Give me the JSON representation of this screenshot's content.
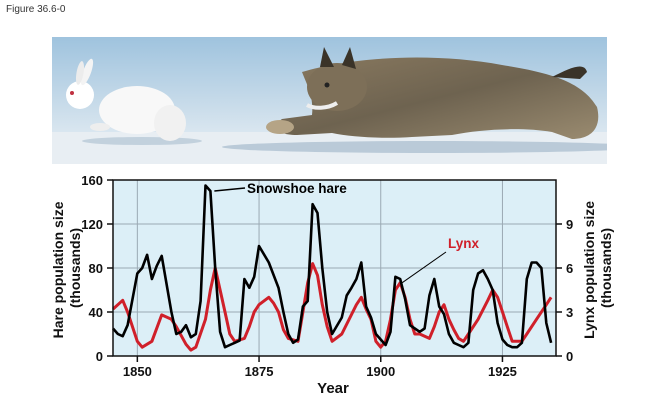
{
  "figure_label": "Figure 36.6-0",
  "photo": {
    "subjects": [
      "snowshoe-hare",
      "lynx"
    ]
  },
  "chart_data": {
    "type": "line",
    "xlabel": "Year",
    "ylabel_left": "Hare population size (thousands)",
    "ylabel_right": "Lynx population size (thousands)",
    "xlim": [
      1845,
      1936
    ],
    "ylim_left": [
      0,
      160
    ],
    "ylim_right": [
      0,
      12
    ],
    "x_ticks": [
      1850,
      1875,
      1900,
      1925
    ],
    "y_ticks_left": [
      0,
      40,
      80,
      120,
      160
    ],
    "y_ticks_right": [
      0,
      3,
      6,
      9
    ],
    "grid": true,
    "background": "#dceff7",
    "series": [
      {
        "name": "Snowshoe hare",
        "axis": "left",
        "color": "#000000",
        "annotation": "Snowshoe hare",
        "x": [
          1845,
          1846,
          1847,
          1848,
          1850,
          1851,
          1852,
          1853,
          1854,
          1855,
          1857,
          1858,
          1859,
          1860,
          1861,
          1862,
          1863,
          1864,
          1865,
          1866,
          1867,
          1868,
          1869,
          1870,
          1871,
          1872,
          1873,
          1874,
          1875,
          1877,
          1879,
          1880,
          1881,
          1882,
          1883,
          1884,
          1885,
          1886,
          1887,
          1888,
          1889,
          1890,
          1892,
          1893,
          1894,
          1895,
          1896,
          1897,
          1898,
          1899,
          1900,
          1901,
          1902,
          1903,
          1904,
          1905,
          1906,
          1907,
          1908,
          1909,
          1910,
          1911,
          1912,
          1913,
          1914,
          1915,
          1916,
          1917,
          1918,
          1919,
          1920,
          1921,
          1922,
          1923,
          1924,
          1925,
          1926,
          1927,
          1928,
          1929,
          1930,
          1931,
          1932,
          1933,
          1934,
          1935
        ],
        "values": [
          25,
          20,
          18,
          28,
          75,
          80,
          92,
          70,
          82,
          91,
          40,
          20,
          22,
          28,
          17,
          20,
          50,
          155,
          150,
          80,
          22,
          8,
          10,
          12,
          14,
          70,
          62,
          72,
          100,
          85,
          62,
          40,
          20,
          12,
          15,
          45,
          50,
          138,
          130,
          80,
          40,
          20,
          35,
          55,
          62,
          70,
          85,
          45,
          35,
          20,
          15,
          10,
          22,
          72,
          70,
          52,
          28,
          25,
          22,
          25,
          55,
          70,
          45,
          38,
          20,
          12,
          10,
          8,
          12,
          60,
          75,
          78,
          70,
          60,
          30,
          15,
          10,
          8,
          8,
          12,
          70,
          85,
          85,
          80,
          30,
          12
        ]
      },
      {
        "name": "Lynx",
        "axis": "right",
        "color": "#d0202a",
        "annotation": "Lynx",
        "x": [
          1845,
          1847,
          1848,
          1850,
          1851,
          1853,
          1855,
          1857,
          1858,
          1860,
          1861,
          1862,
          1864,
          1865,
          1866,
          1867,
          1868,
          1869,
          1870,
          1872,
          1873,
          1874,
          1875,
          1877,
          1878,
          1879,
          1880,
          1881,
          1883,
          1884,
          1885,
          1886,
          1887,
          1888,
          1889,
          1890,
          1892,
          1895,
          1896,
          1897,
          1898,
          1899,
          1900,
          1901,
          1902,
          1903,
          1904,
          1905,
          1906,
          1907,
          1908,
          1910,
          1911,
          1912,
          1913,
          1914,
          1915,
          1916,
          1917,
          1918,
          1920,
          1922,
          1923,
          1924,
          1925,
          1926,
          1927,
          1929,
          1930,
          1932,
          1934,
          1935
        ],
        "values": [
          3.2,
          3.8,
          3.0,
          1.0,
          0.6,
          1.0,
          2.8,
          2.5,
          2.0,
          0.8,
          0.4,
          0.6,
          2.5,
          4.5,
          6.0,
          4.5,
          3.0,
          1.5,
          1.0,
          1.2,
          2.0,
          3.0,
          3.5,
          4.0,
          3.6,
          3.0,
          1.8,
          1.2,
          1.0,
          3.0,
          5.0,
          6.3,
          5.5,
          3.5,
          2.0,
          1.0,
          1.5,
          3.5,
          4.0,
          3.2,
          2.5,
          1.0,
          0.6,
          1.0,
          2.5,
          4.5,
          5.0,
          4.0,
          2.5,
          1.5,
          1.5,
          1.2,
          2.0,
          3.0,
          3.5,
          2.5,
          1.8,
          1.2,
          1.0,
          1.5,
          2.5,
          3.8,
          4.5,
          4.0,
          3.0,
          2.0,
          1.0,
          1.0,
          1.5,
          2.5,
          3.5,
          4.0
        ]
      }
    ]
  }
}
